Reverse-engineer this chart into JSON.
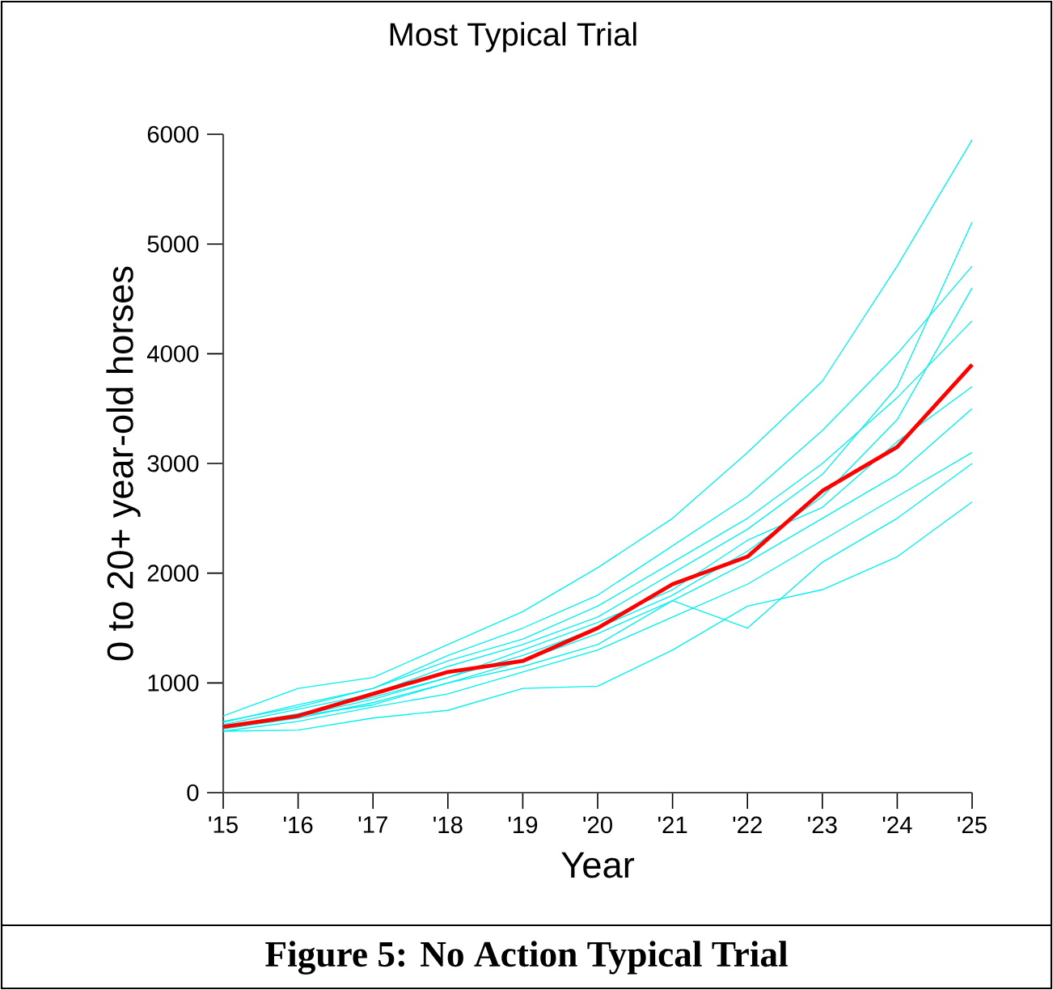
{
  "chart_data": {
    "type": "line",
    "title": "Most Typical Trial",
    "xlabel": "Year",
    "ylabel": "0 to 20+ year-old horses",
    "annotations": [
      "Figure 5:  No Action Typical Trial"
    ],
    "categories": [
      "'15",
      "'16",
      "'17",
      "'18",
      "'19",
      "'20",
      "'21",
      "'22",
      "'23",
      "'24",
      "'25"
    ],
    "ylim": [
      0,
      6000
    ],
    "yticks": [
      0,
      1000,
      2000,
      3000,
      4000,
      5000,
      6000
    ],
    "grid": false,
    "marker": "none",
    "line_style": "solid",
    "series": [
      {
        "color": "#00f0f0",
        "values": [
          700,
          950,
          1050,
          1350,
          1650,
          2050,
          2500,
          3100,
          3750,
          4800,
          5950
        ]
      },
      {
        "color": "#00f0f0",
        "values": [
          560,
          570,
          680,
          750,
          950,
          970,
          1300,
          1700,
          1850,
          2150,
          2650
        ]
      },
      {
        "color": "#00f0f0",
        "values": [
          600,
          700,
          800,
          1000,
          1150,
          1350,
          1750,
          1500,
          2100,
          2500,
          3000
        ]
      },
      {
        "color": "#00f0f0",
        "values": [
          650,
          780,
          950,
          1200,
          1400,
          1700,
          2100,
          2500,
          3000,
          3600,
          4300
        ]
      },
      {
        "color": "#00f0f0",
        "values": [
          620,
          760,
          900,
          1150,
          1350,
          1600,
          2000,
          2400,
          2900,
          3700,
          5200
        ]
      },
      {
        "color": "#00f0f0",
        "values": [
          600,
          720,
          870,
          1050,
          1250,
          1500,
          1800,
          2200,
          2700,
          3400,
          4600
        ]
      },
      {
        "color": "#00f0f0",
        "values": [
          580,
          680,
          820,
          1000,
          1200,
          1450,
          1750,
          2100,
          2500,
          2900,
          3500
        ]
      },
      {
        "color": "#00f0f0",
        "values": [
          560,
          650,
          780,
          900,
          1100,
          1300,
          1600,
          1900,
          2300,
          2700,
          3100
        ]
      },
      {
        "color": "#00f0f0",
        "values": [
          640,
          800,
          950,
          1250,
          1500,
          1800,
          2250,
          2700,
          3300,
          4000,
          4800
        ]
      },
      {
        "color": "#00f0f0",
        "values": [
          600,
          700,
          850,
          1050,
          1300,
          1550,
          1850,
          2300,
          2600,
          3200,
          3700
        ]
      },
      {
        "color": "#ff0000",
        "values": [
          600,
          700,
          900,
          1100,
          1200,
          1500,
          1900,
          2150,
          2750,
          3150,
          3900
        ]
      }
    ]
  }
}
